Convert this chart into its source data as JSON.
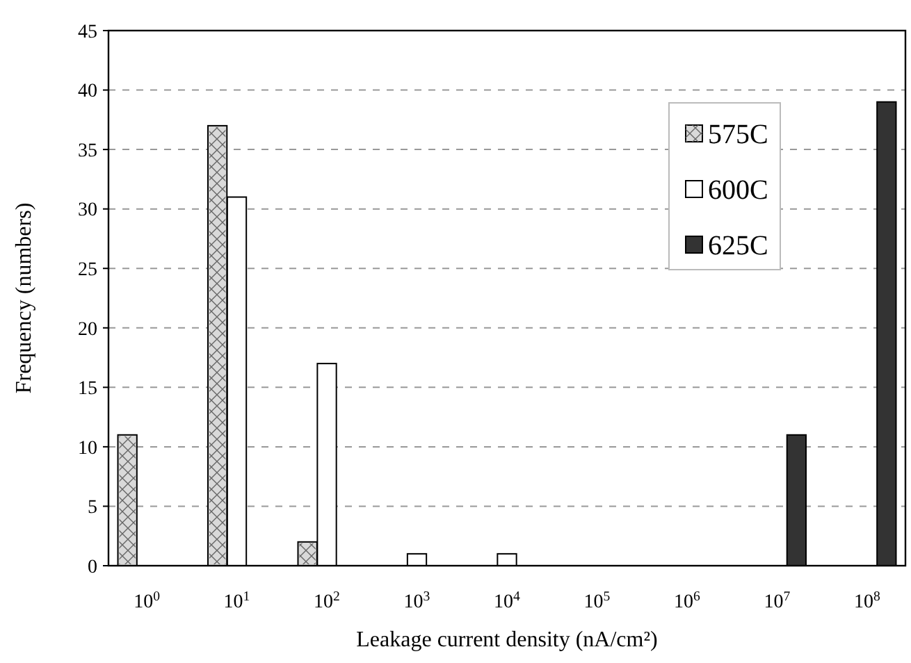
{
  "chart_data": {
    "type": "bar",
    "xlabel": "Leakage current density (nA/cm²)",
    "ylabel": "Frequency (numbers)",
    "categories": [
      "10$^{0}$",
      "10$^{1}$",
      "10$^{2}$",
      "10$^{3}$",
      "10$^{4}$",
      "10$^{5}$",
      "10$^{6}$",
      "10$^{7}$",
      "10$^{8}$"
    ],
    "series": [
      {
        "name": "575C",
        "color": "#d9d9d9",
        "values": [
          11,
          37,
          2,
          0,
          0,
          0,
          0,
          0,
          0
        ]
      },
      {
        "name": "600C",
        "color": "#ffffff",
        "values": [
          0,
          31,
          17,
          1,
          1,
          0,
          0,
          0,
          0
        ]
      },
      {
        "name": "625C",
        "color": "#333333",
        "values": [
          0,
          0,
          0,
          0,
          0,
          0,
          0,
          11,
          39
        ]
      }
    ],
    "ylim": [
      0,
      45
    ],
    "yticks": [
      0,
      5,
      10,
      15,
      20,
      25,
      30,
      35,
      40,
      45
    ],
    "grid": "y",
    "legend": "top right"
  }
}
